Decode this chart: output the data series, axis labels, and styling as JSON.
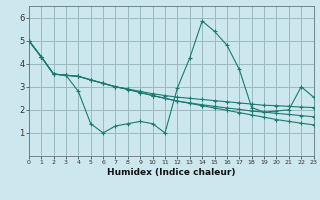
{
  "xlabel": "Humidex (Indice chaleur)",
  "xlim": [
    0,
    23
  ],
  "ylim": [
    0,
    6.5
  ],
  "xtick_labels": [
    "0",
    "1",
    "2",
    "3",
    "4",
    "5",
    "6",
    "7",
    "8",
    "9",
    "10",
    "11",
    "12",
    "13",
    "14",
    "15",
    "16",
    "17",
    "18",
    "19",
    "20",
    "21",
    "22",
    "23"
  ],
  "yticks": [
    1,
    2,
    3,
    4,
    5,
    6
  ],
  "background_color": "#cce8ee",
  "grid_color": "#99bbbb",
  "line_color": "#1a7a6e",
  "series": [
    [
      5.0,
      4.3,
      3.55,
      3.5,
      2.8,
      1.4,
      1.0,
      1.3,
      1.4,
      1.5,
      1.4,
      1.0,
      2.95,
      4.25,
      5.85,
      5.4,
      4.8,
      3.75,
      2.1,
      1.9,
      1.95,
      2.0,
      3.0,
      2.55
    ],
    [
      5.0,
      4.3,
      3.55,
      3.5,
      3.45,
      3.3,
      3.15,
      3.0,
      2.9,
      2.75,
      2.62,
      2.5,
      2.38,
      2.28,
      2.18,
      2.08,
      1.98,
      1.88,
      1.78,
      1.68,
      1.58,
      1.5,
      1.42,
      1.35
    ],
    [
      5.0,
      4.3,
      3.55,
      3.5,
      3.45,
      3.3,
      3.15,
      3.0,
      2.88,
      2.75,
      2.62,
      2.5,
      2.38,
      2.3,
      2.22,
      2.15,
      2.08,
      2.02,
      1.95,
      1.9,
      1.85,
      1.8,
      1.75,
      1.7
    ],
    [
      5.0,
      4.3,
      3.55,
      3.5,
      3.45,
      3.3,
      3.15,
      3.0,
      2.9,
      2.8,
      2.7,
      2.62,
      2.55,
      2.5,
      2.45,
      2.4,
      2.35,
      2.3,
      2.25,
      2.2,
      2.18,
      2.15,
      2.12,
      2.1
    ]
  ]
}
